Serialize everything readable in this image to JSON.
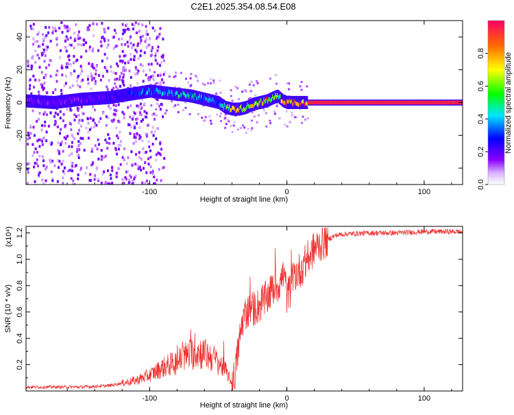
{
  "page_title": "C2E1.2025.354.08.54.E08",
  "chart_data": [
    {
      "type": "heatmap",
      "title": "C2E1.2025.354.08.54.E08",
      "xlabel": "Height of straight line (km)",
      "ylabel": "Frequency (Hz)",
      "xlim": [
        -190,
        128
      ],
      "ylim": [
        -50,
        50
      ],
      "xticks": [
        -100,
        0,
        100
      ],
      "yticks": [
        -40,
        -20,
        0,
        20,
        40
      ],
      "colorbar": {
        "label": "Normalized spectral amplitude",
        "range": [
          0,
          1
        ],
        "ticks": [
          "0.0",
          "0.2",
          "0.4",
          "0.6",
          "0.8"
        ]
      },
      "ridge": {
        "x": [
          -190,
          -170,
          -150,
          -130,
          -115,
          -100,
          -90,
          -80,
          -70,
          -60,
          -50,
          -45,
          -40,
          -35,
          -30,
          -25,
          -20,
          -15,
          -10,
          -7,
          -3,
          0,
          5,
          10,
          15,
          20,
          40,
          80,
          128
        ],
        "y": [
          1,
          0,
          2,
          3,
          5,
          7,
          6,
          5,
          4,
          2,
          0,
          -3,
          -4,
          -4,
          -3,
          -1,
          0,
          1,
          3,
          4,
          1,
          0,
          0,
          0,
          0,
          0,
          0,
          0,
          0
        ],
        "amplitude": [
          0.2,
          0.2,
          0.2,
          0.25,
          0.3,
          0.4,
          0.45,
          0.5,
          0.5,
          0.45,
          0.35,
          0.5,
          0.9,
          0.85,
          0.7,
          0.75,
          0.8,
          0.85,
          0.75,
          0.6,
          0.9,
          0.95,
          0.95,
          0.95,
          0.95,
          0.95,
          0.95,
          0.95,
          0.95
        ]
      }
    },
    {
      "type": "line",
      "xlabel": "Height of straight line (km)",
      "ylabel": "SNR (10 * v/v)",
      "multiplier": "(x10⁴)",
      "xlim": [
        -190,
        128
      ],
      "ylim": [
        0,
        1.25
      ],
      "xticks": [
        -100,
        0,
        100
      ],
      "yticks": [
        0.2,
        0.4,
        0.6,
        0.8,
        1.0,
        1.2
      ],
      "color": "#ee3333",
      "envelope": {
        "x": [
          -190,
          -170,
          -150,
          -130,
          -120,
          -110,
          -100,
          -90,
          -85,
          -80,
          -75,
          -70,
          -65,
          -60,
          -55,
          -50,
          -45,
          -42,
          -40,
          -38,
          -35,
          -32,
          -30,
          -25,
          -20,
          -15,
          -10,
          -5,
          -2,
          0,
          3,
          5,
          10,
          15,
          20,
          25,
          30,
          35,
          40,
          60,
          80,
          100,
          128
        ],
        "y": [
          0.03,
          0.03,
          0.03,
          0.04,
          0.06,
          0.08,
          0.12,
          0.18,
          0.2,
          0.22,
          0.26,
          0.28,
          0.3,
          0.28,
          0.26,
          0.22,
          0.16,
          0.1,
          0.06,
          0.12,
          0.35,
          0.55,
          0.6,
          0.62,
          0.65,
          0.7,
          0.78,
          0.82,
          0.9,
          0.72,
          0.78,
          0.88,
          0.92,
          1.0,
          1.08,
          1.12,
          1.15,
          1.18,
          1.19,
          1.2,
          1.2,
          1.21,
          1.21
        ]
      }
    }
  ]
}
